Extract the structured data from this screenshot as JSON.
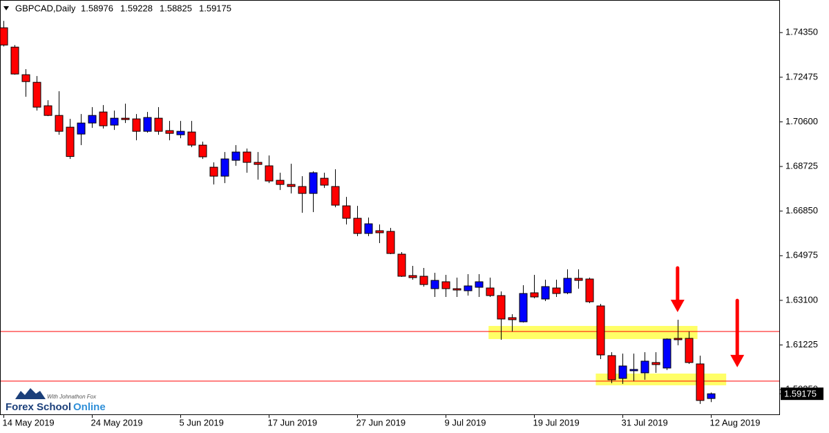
{
  "chart_data": {
    "type": "candlestick",
    "title": "GBPCAD,Daily",
    "categories": [
      "14 May 2019",
      null,
      null,
      null,
      null,
      null,
      null,
      null,
      "24 May 2019",
      null,
      null,
      null,
      null,
      null,
      null,
      null,
      "5 Jun 2019",
      null,
      null,
      null,
      null,
      null,
      null,
      null,
      "17 Jun 2019",
      null,
      null,
      null,
      null,
      null,
      null,
      null,
      "27 Jun 2019",
      null,
      null,
      null,
      null,
      null,
      null,
      null,
      "9 Jul 2019",
      null,
      null,
      null,
      null,
      null,
      null,
      null,
      "19 Jul 2019",
      null,
      null,
      null,
      null,
      null,
      null,
      null,
      "31 Jul 2019",
      null,
      null,
      null,
      null,
      null,
      null,
      null,
      "12 Aug 2019"
    ],
    "open": [
      1.74553,
      1.73741,
      1.72581,
      1.72262,
      1.71276,
      1.7087,
      1.70377,
      1.70087,
      1.70551,
      1.71015,
      1.70464,
      1.70754,
      1.70725,
      1.70203,
      1.70754,
      1.70232,
      1.70058,
      1.70174,
      1.69623,
      1.68695,
      1.68318,
      1.68985,
      1.69333,
      1.68898,
      1.68753,
      1.68144,
      1.6797,
      1.67883,
      1.67593,
      1.68231,
      1.67883,
      1.67071,
      1.66549,
      1.65911,
      1.66027,
      1.65998,
      1.65041,
      1.64142,
      1.64113,
      1.63591,
      1.63881,
      1.63591,
      1.63504,
      1.63649,
      1.6362,
      1.63301,
      1.62373,
      1.62199,
      1.63417,
      1.63156,
      1.6362,
      1.63417,
      1.64026,
      1.63997,
      1.62866,
      1.60778,
      1.59821,
      1.6014,
      1.60053,
      1.60488,
      1.60256,
      1.61503,
      1.61503,
      1.6043,
      1.58976
    ],
    "high": [
      1.74843,
      1.73828,
      1.72813,
      1.72523,
      1.71508,
      1.71885,
      1.70725,
      1.70928,
      1.71218,
      1.71305,
      1.71073,
      1.71363,
      1.70928,
      1.71015,
      1.71218,
      1.70638,
      1.70638,
      1.70638,
      1.69768,
      1.68898,
      1.69333,
      1.69623,
      1.69478,
      1.69333,
      1.69188,
      1.68463,
      1.6884,
      1.68318,
      1.68521,
      1.68463,
      1.68608,
      1.67448,
      1.67071,
      1.66578,
      1.66288,
      1.66143,
      1.65128,
      1.64548,
      1.64461,
      1.64258,
      1.64171,
      1.64055,
      1.642,
      1.642,
      1.64055,
      1.63475,
      1.62518,
      1.63736,
      1.64171,
      1.63968,
      1.63968,
      1.64403,
      1.64403,
      1.64055,
      1.62953,
      1.60923,
      1.60865,
      1.60865,
      1.60923,
      1.60923,
      1.61503,
      1.62286,
      1.61793,
      1.60778,
      1.59228
    ],
    "low": [
      1.7377,
      1.72581,
      1.71653,
      1.71073,
      1.70841,
      1.70058,
      1.69043,
      1.69623,
      1.70348,
      1.70319,
      1.70261,
      1.70551,
      1.69826,
      1.70145,
      1.70058,
      1.69826,
      1.69913,
      1.69536,
      1.69043,
      1.6797,
      1.68028,
      1.68753,
      1.68463,
      1.68173,
      1.68028,
      1.67738,
      1.67593,
      1.66781,
      1.6681,
      1.67825,
      1.67013,
      1.66288,
      1.65795,
      1.65795,
      1.65505,
      1.65041,
      1.64084,
      1.63968,
      1.63678,
      1.63243,
      1.63243,
      1.63243,
      1.63301,
      1.63243,
      1.63243,
      1.61445,
      1.61793,
      1.6217,
      1.63185,
      1.63069,
      1.63243,
      1.63359,
      1.63591,
      1.62982,
      1.60633,
      1.59618,
      1.59589,
      1.59705,
      1.59763,
      1.60053,
      1.60169,
      1.61213,
      1.6043,
      1.58748,
      1.58825
    ],
    "close": [
      1.73828,
      1.7261,
      1.72291,
      1.71218,
      1.7087,
      1.70203,
      1.69145,
      1.70551,
      1.7087,
      1.70435,
      1.70754,
      1.70696,
      1.70203,
      1.70783,
      1.70203,
      1.70116,
      1.70203,
      1.69623,
      1.6913,
      1.68318,
      1.69043,
      1.69333,
      1.68898,
      1.68811,
      1.68115,
      1.6797,
      1.67883,
      1.67593,
      1.68463,
      1.67941,
      1.671,
      1.66549,
      1.65911,
      1.66317,
      1.6594,
      1.6507,
      1.64113,
      1.64055,
      1.63765,
      1.63939,
      1.63591,
      1.63533,
      1.63707,
      1.63881,
      1.63301,
      1.62315,
      1.62286,
      1.63388,
      1.63243,
      1.63678,
      1.63388,
      1.64026,
      1.63939,
      1.6304,
      1.60807,
      1.59763,
      1.60343,
      1.60198,
      1.60546,
      1.60401,
      1.61474,
      1.61445,
      1.60488,
      1.58893,
      1.59175
    ],
    "up_color": "#0000ff",
    "down_color": "#ff0000",
    "xlim": [
      -0.3,
      70.2
    ],
    "ylim": [
      1.5831,
      1.7572
    ],
    "yticks": [
      {
        "value": 1.7435,
        "label": "1.74350"
      },
      {
        "value": 1.72475,
        "label": "1.72475"
      },
      {
        "value": 1.706,
        "label": "1.70600"
      },
      {
        "value": 1.68725,
        "label": "1.68725"
      },
      {
        "value": 1.6685,
        "label": "1.66850"
      },
      {
        "value": 1.64975,
        "label": "1.64975"
      },
      {
        "value": 1.631,
        "label": "1.63100"
      },
      {
        "value": 1.61225,
        "label": "1.61225"
      },
      {
        "value": 1.5935,
        "label": "1.59350"
      }
    ],
    "levels": [
      1.61793,
      1.59705
    ],
    "level_color": "#ff0000",
    "zones": [
      {
        "x": [
          43.9,
          62.8
        ],
        "y": [
          1.62025,
          1.61474
        ]
      },
      {
        "x": [
          53.6,
          65.4
        ],
        "y": [
          1.60024,
          1.59531
        ]
      }
    ],
    "zone_color": "#ffff66",
    "arrows": [
      {
        "x": 61,
        "y": [
          1.64461,
          1.62605
        ]
      },
      {
        "x": 66.4,
        "y": [
          1.63095,
          1.60285
        ]
      }
    ],
    "arrow_color": "#ff0000"
  },
  "logo": {
    "name_a": "Forex School",
    "name_b": "Online",
    "tagline": "With Johnathon Fox"
  }
}
